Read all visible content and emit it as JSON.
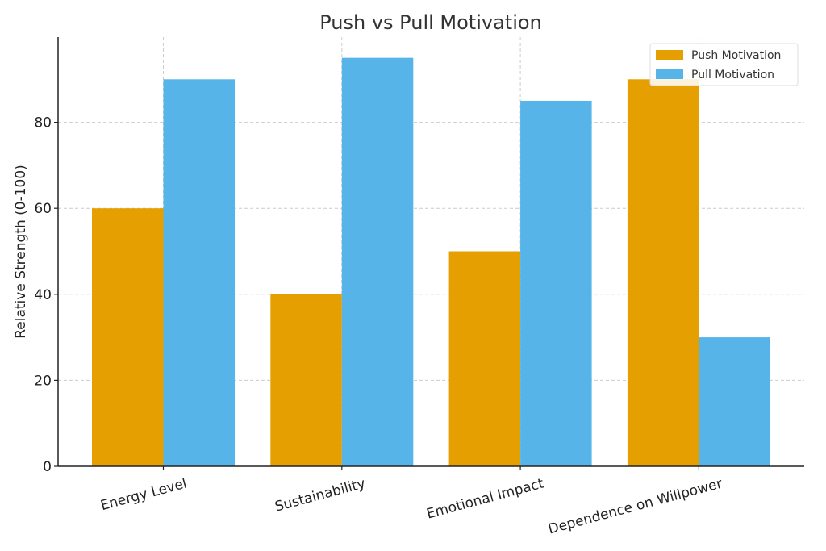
{
  "chart_data": {
    "type": "bar",
    "title": "Push vs Pull Motivation",
    "xlabel": "",
    "ylabel": "Relative Strength (0-100)",
    "ylim": [
      0,
      100
    ],
    "yticks": [
      0,
      20,
      40,
      60,
      80
    ],
    "grid": true,
    "legend_position": "top-right",
    "categories": [
      "Energy Level",
      "Sustainability",
      "Emotional Impact",
      "Dependence on Willpower"
    ],
    "series": [
      {
        "name": "Push Motivation",
        "color": "#E69F00",
        "values": [
          60,
          40,
          50,
          90
        ]
      },
      {
        "name": "Pull Motivation",
        "color": "#56B4E9",
        "values": [
          90,
          95,
          85,
          30
        ]
      }
    ]
  }
}
